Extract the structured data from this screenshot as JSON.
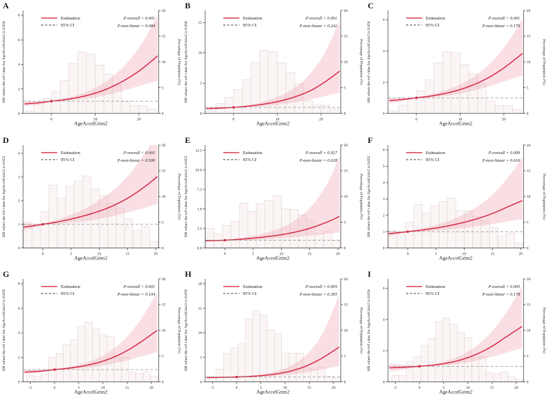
{
  "shared": {
    "x_axis_label": "AgeAccelGrim2",
    "right_y_axis_label": "Percentage of Population (%)",
    "legend": {
      "estimation": "Estimation",
      "ci": "95% CI"
    },
    "right_y_tick_labels": [
      "0",
      "5",
      "10",
      "15",
      "20"
    ],
    "right_y_tick_values": [
      0,
      5,
      10,
      15,
      20
    ],
    "right_y_max": 20,
    "colors": {
      "estimation_line": "#d62a47",
      "ci_band": "#eda4b2",
      "histogram_fill": "#fbf6f5",
      "histogram_stroke": "#d9cccb",
      "reference_line": "#909090",
      "axis": "#2b2b2b"
    }
  },
  "chart_data": [
    {
      "panel": "A",
      "type": "line",
      "y_axis_label": "HR where the ref value for AgeAccelGrim2 is 0.050",
      "p_overall": "P-overall < 0.001",
      "p_non_linear": "P-non-linear = 0.084",
      "x_range": [
        -6.5,
        24.5
      ],
      "x_tick_values": [
        0,
        10,
        20
      ],
      "x_tick_labels": [
        "0",
        "10",
        "20"
      ],
      "y_left_range": [
        0,
        8.4
      ],
      "y_left_tick_values": [
        0,
        2,
        4,
        6,
        8
      ],
      "y_left_tick_labels": [
        "0",
        "2",
        "4",
        "6",
        "8"
      ],
      "reference_point": {
        "x": 0,
        "hr": 1
      },
      "curve_x": [
        -6.2,
        -3,
        0,
        3,
        6,
        9,
        12,
        15,
        18,
        21,
        24.3
      ],
      "curve_hr": [
        0.78,
        0.86,
        1.0,
        1.12,
        1.3,
        1.55,
        1.9,
        2.38,
        2.98,
        3.72,
        4.7
      ],
      "ci_lower": [
        0.6,
        0.73,
        0.96,
        1.03,
        1.12,
        1.26,
        1.46,
        1.72,
        2.02,
        2.34,
        2.66
      ],
      "ci_upper": [
        0.98,
        1.0,
        1.05,
        1.23,
        1.51,
        1.92,
        2.5,
        3.32,
        4.42,
        5.9,
        8.0
      ],
      "histogram_bin_start": -6,
      "histogram_bin_width": 2,
      "histogram_percent": [
        0.4,
        1.7,
        2.9,
        4.3,
        6.4,
        9.7,
        11.9,
        11.5,
        9.4,
        7.6,
        5.6,
        2.3,
        1.5,
        1.5,
        0.8
      ]
    },
    {
      "panel": "B",
      "type": "line",
      "y_axis_label": "HR where the ref value for AgeAccelGrim2 is 0.050",
      "p_overall": "P-overall < 0.001",
      "p_non_linear": "P-non-linear = 0.242",
      "x_range": [
        -6.5,
        24.5
      ],
      "x_tick_values": [
        0,
        10,
        20
      ],
      "x_tick_labels": [
        "0",
        "10",
        "20"
      ],
      "y_left_range": [
        0,
        17
      ],
      "y_left_tick_values": [
        0,
        5,
        10,
        15
      ],
      "y_left_tick_labels": [
        "0",
        "5",
        "10",
        "15"
      ],
      "reference_point": {
        "x": 0,
        "hr": 1
      },
      "curve_x": [
        -6.2,
        -3,
        0,
        3,
        6,
        9,
        12,
        15,
        18,
        21,
        24.3
      ],
      "curve_hr": [
        0.8,
        0.88,
        1.0,
        1.18,
        1.44,
        1.8,
        2.3,
        2.98,
        3.92,
        5.25,
        7.0
      ],
      "ci_lower": [
        0.58,
        0.73,
        0.95,
        1.04,
        1.17,
        1.36,
        1.62,
        1.95,
        2.38,
        2.88,
        3.45
      ],
      "ci_upper": [
        1.03,
        1.05,
        1.06,
        1.34,
        1.78,
        2.42,
        3.38,
        4.8,
        6.95,
        10.2,
        15.3
      ],
      "histogram_bin_start": -6,
      "histogram_bin_width": 2,
      "histogram_percent": [
        0.5,
        1.9,
        3.1,
        4.6,
        6.6,
        9.9,
        12.2,
        12.0,
        9.8,
        7.9,
        5.7,
        2.5,
        1.6,
        1.6,
        0.9
      ]
    },
    {
      "panel": "C",
      "type": "line",
      "y_axis_label": "HR where the ref value for AgeAccelGrim2 is 0.050",
      "p_overall": "P-overall < 0.001",
      "p_non_linear": "P-non-linear = 0.179",
      "x_range": [
        -6.5,
        24.5
      ],
      "x_tick_values": [
        0,
        10,
        20
      ],
      "x_tick_labels": [
        "0",
        "10",
        "20"
      ],
      "y_left_range": [
        0,
        6.6
      ],
      "y_left_tick_values": [
        0,
        2,
        4,
        6
      ],
      "y_left_tick_labels": [
        "0",
        "2",
        "4",
        "6"
      ],
      "reference_point": {
        "x": 0,
        "hr": 1
      },
      "curve_x": [
        -6.2,
        -3,
        0,
        3,
        6,
        9,
        12,
        15,
        18,
        21,
        24.3
      ],
      "curve_hr": [
        0.82,
        0.9,
        1.0,
        1.1,
        1.25,
        1.45,
        1.72,
        2.08,
        2.54,
        3.12,
        3.85
      ],
      "ci_lower": [
        0.64,
        0.78,
        0.96,
        1.02,
        1.1,
        1.22,
        1.39,
        1.6,
        1.86,
        2.14,
        2.44
      ],
      "ci_upper": [
        1.0,
        1.02,
        1.05,
        1.2,
        1.43,
        1.74,
        2.16,
        2.74,
        3.52,
        4.6,
        6.05
      ],
      "histogram_bin_start": -6,
      "histogram_bin_width": 2,
      "histogram_percent": [
        0.4,
        1.6,
        2.9,
        4.4,
        6.5,
        9.8,
        12.0,
        11.8,
        9.5,
        7.7,
        5.8,
        2.4,
        1.5,
        1.5,
        0.8
      ]
    },
    {
      "panel": "D",
      "type": "line",
      "y_axis_label": "HR where the ref value for AgeAccelGrim2 is 0.052",
      "p_overall": "P-overall < 0.001",
      "p_non_linear": "P-non-linear = 0.500",
      "x_range": [
        -3.5,
        20.5
      ],
      "x_tick_values": [
        0,
        5,
        10,
        15,
        20
      ],
      "x_tick_labels": [
        "0",
        "5",
        "10",
        "15",
        "20"
      ],
      "y_left_range": [
        0,
        4.35
      ],
      "y_left_tick_values": [
        0,
        1,
        2,
        3,
        4
      ],
      "y_left_tick_labels": [
        "0",
        "1",
        "2",
        "3",
        "4"
      ],
      "reference_point": {
        "x": 0,
        "hr": 1
      },
      "curve_x": [
        -3.4,
        0,
        3,
        6,
        9,
        12,
        15,
        18,
        20.3
      ],
      "curve_hr": [
        0.88,
        1.0,
        1.12,
        1.28,
        1.48,
        1.74,
        2.1,
        2.58,
        3.02
      ],
      "ci_lower": [
        0.73,
        0.96,
        1.02,
        1.09,
        1.18,
        1.32,
        1.5,
        1.7,
        1.86
      ],
      "ci_upper": [
        1.03,
        1.04,
        1.23,
        1.5,
        1.87,
        2.36,
        3.02,
        3.98,
        4.85
      ],
      "histogram_bin_start": -3.4,
      "histogram_bin_width": 1.49,
      "histogram_percent": [
        5.0,
        4.4,
        7.1,
        12.2,
        9.7,
        11.9,
        13.0,
        14.0,
        11.5,
        10.2,
        8.7,
        7.7,
        5.7,
        3.4,
        4.2,
        1.3
      ]
    },
    {
      "panel": "E",
      "type": "line",
      "y_axis_label": "HR where the ref value for AgeAccelGrim2 is 0.052",
      "p_overall": "P-overall = 0.027",
      "p_non_linear": "P-non-linear = 0.628",
      "x_range": [
        -3.5,
        20.5
      ],
      "x_tick_values": [
        0,
        5,
        10,
        15,
        20
      ],
      "x_tick_labels": [
        "0",
        "5",
        "10",
        "15",
        "20"
      ],
      "y_left_range": [
        0,
        13.2
      ],
      "y_left_tick_values": [
        0,
        2.5,
        5,
        7.5,
        10,
        12.5
      ],
      "y_left_tick_labels": [
        "0.0",
        "2.5",
        "5.0",
        "7.5",
        "10.0",
        "12.5"
      ],
      "reference_point": {
        "x": 0,
        "hr": 1
      },
      "curve_x": [
        -3.4,
        0,
        3,
        6,
        9,
        12,
        15,
        18,
        20.3
      ],
      "curve_hr": [
        0.93,
        1.0,
        1.14,
        1.34,
        1.6,
        1.97,
        2.52,
        3.3,
        4.05
      ],
      "ci_lower": [
        0.8,
        0.96,
        1.02,
        1.1,
        1.22,
        1.37,
        1.57,
        1.8,
        1.98
      ],
      "ci_upper": [
        1.08,
        1.05,
        1.3,
        1.72,
        2.35,
        3.35,
        5.1,
        8.1,
        11.8
      ],
      "histogram_bin_start": -3.4,
      "histogram_bin_width": 1.49,
      "histogram_percent": [
        3.8,
        2.7,
        4.4,
        5.2,
        8.7,
        7.1,
        8.6,
        9.2,
        10.2,
        7.7,
        7.5,
        6.4,
        5.4,
        2.7,
        3.2,
        1.4
      ]
    },
    {
      "panel": "F",
      "type": "line",
      "y_axis_label": "HR where the ref value for AgeAccelGrim2 is 0.052",
      "p_overall": "P-overall = 0.009",
      "p_non_linear": "P-non-linear = 0.616",
      "x_range": [
        -3.5,
        20.5
      ],
      "x_tick_values": [
        0,
        5,
        10,
        15,
        20
      ],
      "x_tick_labels": [
        "0",
        "5",
        "10",
        "15",
        "20"
      ],
      "y_left_range": [
        0,
        6.3
      ],
      "y_left_tick_values": [
        0,
        1,
        2,
        3,
        4,
        5,
        6
      ],
      "y_left_tick_labels": [
        "0",
        "1",
        "2",
        "3",
        "4",
        "5",
        "6"
      ],
      "reference_point": {
        "x": 0,
        "hr": 1
      },
      "curve_x": [
        -3.4,
        0,
        3,
        6,
        9,
        12,
        15,
        18,
        20.3
      ],
      "curve_hr": [
        0.87,
        1.0,
        1.12,
        1.28,
        1.49,
        1.76,
        2.11,
        2.56,
        2.9
      ],
      "ci_lower": [
        0.72,
        0.96,
        1.02,
        1.09,
        1.18,
        1.31,
        1.47,
        1.64,
        1.76
      ],
      "ci_upper": [
        1.03,
        1.04,
        1.24,
        1.52,
        1.91,
        2.46,
        3.26,
        4.42,
        5.55
      ],
      "histogram_bin_start": -3.4,
      "histogram_bin_width": 1.49,
      "histogram_percent": [
        3.4,
        2.6,
        5.0,
        8.4,
        6.8,
        8.2,
        9.0,
        9.7,
        7.2,
        7.2,
        6.1,
        5.3,
        4.0,
        2.3,
        2.9,
        0.9
      ]
    },
    {
      "panel": "G",
      "type": "line",
      "y_axis_label": "HR where the ref value for AgeAccelGrim2 is 0.059",
      "p_overall": "P-overall < 0.001",
      "p_non_linear": "P-non-linear = 0.104",
      "x_range": [
        -6.5,
        21.5
      ],
      "x_tick_values": [
        -5,
        0,
        5,
        10,
        15,
        20
      ],
      "x_tick_labels": [
        "-5",
        "0",
        "5",
        "10",
        "15",
        "20"
      ],
      "y_left_range": [
        0,
        8.4
      ],
      "y_left_tick_values": [
        0,
        2,
        4,
        6,
        8
      ],
      "y_left_tick_labels": [
        "0",
        "2",
        "4",
        "6",
        "8"
      ],
      "reference_point": {
        "x": 0,
        "hr": 1
      },
      "curve_x": [
        -6.2,
        -3,
        0,
        3,
        6,
        9,
        12,
        15,
        18,
        21.2
      ],
      "curve_hr": [
        0.8,
        0.87,
        1.0,
        1.12,
        1.3,
        1.57,
        1.98,
        2.55,
        3.3,
        4.2
      ],
      "ci_lower": [
        0.62,
        0.76,
        0.96,
        1.03,
        1.12,
        1.27,
        1.48,
        1.75,
        2.08,
        2.42
      ],
      "ci_upper": [
        0.98,
        1.0,
        1.05,
        1.23,
        1.51,
        1.95,
        2.65,
        3.7,
        5.2,
        7.3
      ],
      "histogram_bin_start": -5.7,
      "histogram_bin_width": 1.5,
      "histogram_percent": [
        1.2,
        1.1,
        1.5,
        4.8,
        5.5,
        7.2,
        8.2,
        10.8,
        11.6,
        10.4,
        9.2,
        8.8,
        4.8,
        4.8,
        1.9,
        1.6,
        1.9,
        1.1
      ]
    },
    {
      "panel": "H",
      "type": "line",
      "y_axis_label": "HR where the ref value for AgeAccelGrim2 is 0.059",
      "p_overall": "P-overall = 0.005",
      "p_non_linear": "P-non-linear = 0.365",
      "x_range": [
        -6.5,
        21.5
      ],
      "x_tick_values": [
        -5,
        0,
        5,
        10,
        15,
        20
      ],
      "x_tick_labels": [
        "-5",
        "0",
        "5",
        "10",
        "15",
        "20"
      ],
      "y_left_range": [
        0,
        21
      ],
      "y_left_tick_values": [
        0,
        5,
        10,
        15,
        20
      ],
      "y_left_tick_labels": [
        "0",
        "5",
        "10",
        "15",
        "20"
      ],
      "reference_point": {
        "x": 0,
        "hr": 1
      },
      "curve_x": [
        -6.2,
        -3,
        0,
        3,
        6,
        9,
        12,
        15,
        18,
        21.2
      ],
      "curve_hr": [
        0.88,
        0.93,
        1.0,
        1.13,
        1.36,
        1.76,
        2.42,
        3.5,
        5.05,
        7.1
      ],
      "ci_lower": [
        0.6,
        0.79,
        0.95,
        1.02,
        1.12,
        1.3,
        1.6,
        2.04,
        2.62,
        3.25
      ],
      "ci_upper": [
        1.12,
        1.08,
        1.06,
        1.27,
        1.66,
        2.42,
        3.72,
        6.1,
        10.3,
        17.8
      ],
      "histogram_bin_start": -5.7,
      "histogram_bin_width": 1.5,
      "histogram_percent": [
        1.0,
        2.5,
        5.5,
        6.6,
        7.4,
        12.2,
        13.8,
        13.0,
        10.1,
        9.4,
        5.6,
        5.6,
        5.6,
        2.8,
        2.5,
        2.9,
        1.1,
        0.8
      ]
    },
    {
      "panel": "I",
      "type": "line",
      "y_axis_label": "HR where the ref value for AgeAccelGrim2 is 0.059",
      "p_overall": "P-overall = 0.005",
      "p_non_linear": "P-non-linear = 0.178",
      "x_range": [
        -6.5,
        21.5
      ],
      "x_tick_values": [
        -5,
        0,
        5,
        10,
        15,
        20
      ],
      "x_tick_labels": [
        "-5",
        "0",
        "5",
        "10",
        "15",
        "20"
      ],
      "y_left_range": [
        0,
        6.6
      ],
      "y_left_tick_values": [
        0,
        2,
        4,
        6
      ],
      "y_left_tick_labels": [
        "0",
        "2",
        "4",
        "6"
      ],
      "reference_point": {
        "x": 0,
        "hr": 1
      },
      "curve_x": [
        -6.2,
        -3,
        0,
        3,
        6,
        9,
        12,
        15,
        18,
        21.2
      ],
      "curve_hr": [
        0.9,
        0.94,
        1.0,
        1.08,
        1.22,
        1.45,
        1.8,
        2.28,
        2.9,
        3.55
      ],
      "ci_lower": [
        0.66,
        0.8,
        0.96,
        1.02,
        1.08,
        1.2,
        1.38,
        1.61,
        1.88,
        2.16
      ],
      "ci_upper": [
        1.18,
        1.1,
        1.05,
        1.16,
        1.39,
        1.76,
        2.36,
        3.24,
        4.48,
        6.1
      ],
      "histogram_bin_start": -5.7,
      "histogram_bin_width": 1.5,
      "histogram_percent": [
        1.3,
        1.2,
        4.0,
        4.9,
        7.0,
        8.4,
        11.7,
        12.4,
        11.2,
        9.6,
        8.6,
        4.7,
        4.9,
        1.8,
        1.5,
        1.9,
        1.0,
        0.5
      ]
    }
  ]
}
